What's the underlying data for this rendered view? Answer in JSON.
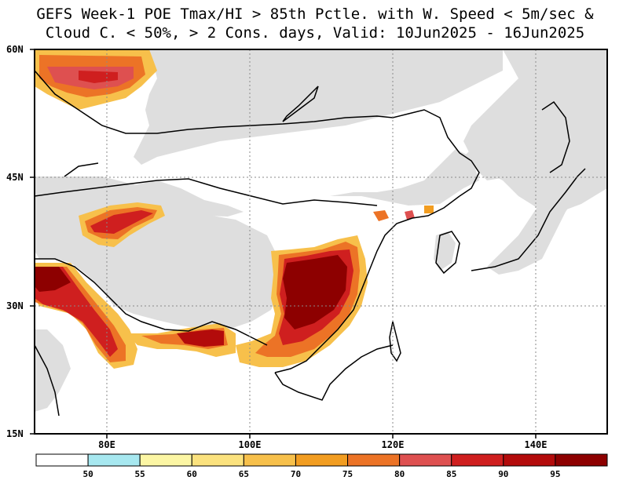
{
  "title": {
    "line1": "GEFS Week-1 POE Tmax/HI > 85th Pctle. with W. Speed < 5m/sec &",
    "line2": "Cloud C. < 50%, > 2 Cons. days, Valid: 10Jun2025 - 16Jun2025"
  },
  "axes": {
    "lat_labels": [
      "60N",
      "45N",
      "30N",
      "15N"
    ],
    "lon_labels": [
      "80E",
      "100E",
      "120E",
      "140E"
    ]
  },
  "colorbar": {
    "labels": [
      "50",
      "55",
      "60",
      "65",
      "70",
      "75",
      "80",
      "85",
      "90",
      "95"
    ],
    "colors": [
      "#ffffff",
      "#a7e8f0",
      "#fcf6a4",
      "#fbe27e",
      "#f7c04b",
      "#f29d21",
      "#ec7326",
      "#de5050",
      "#cf1f1f",
      "#b30b0b",
      "#8d0000"
    ]
  },
  "map_colors": {
    "land_masked": "#dedede",
    "ocean": "#ffffff"
  }
}
